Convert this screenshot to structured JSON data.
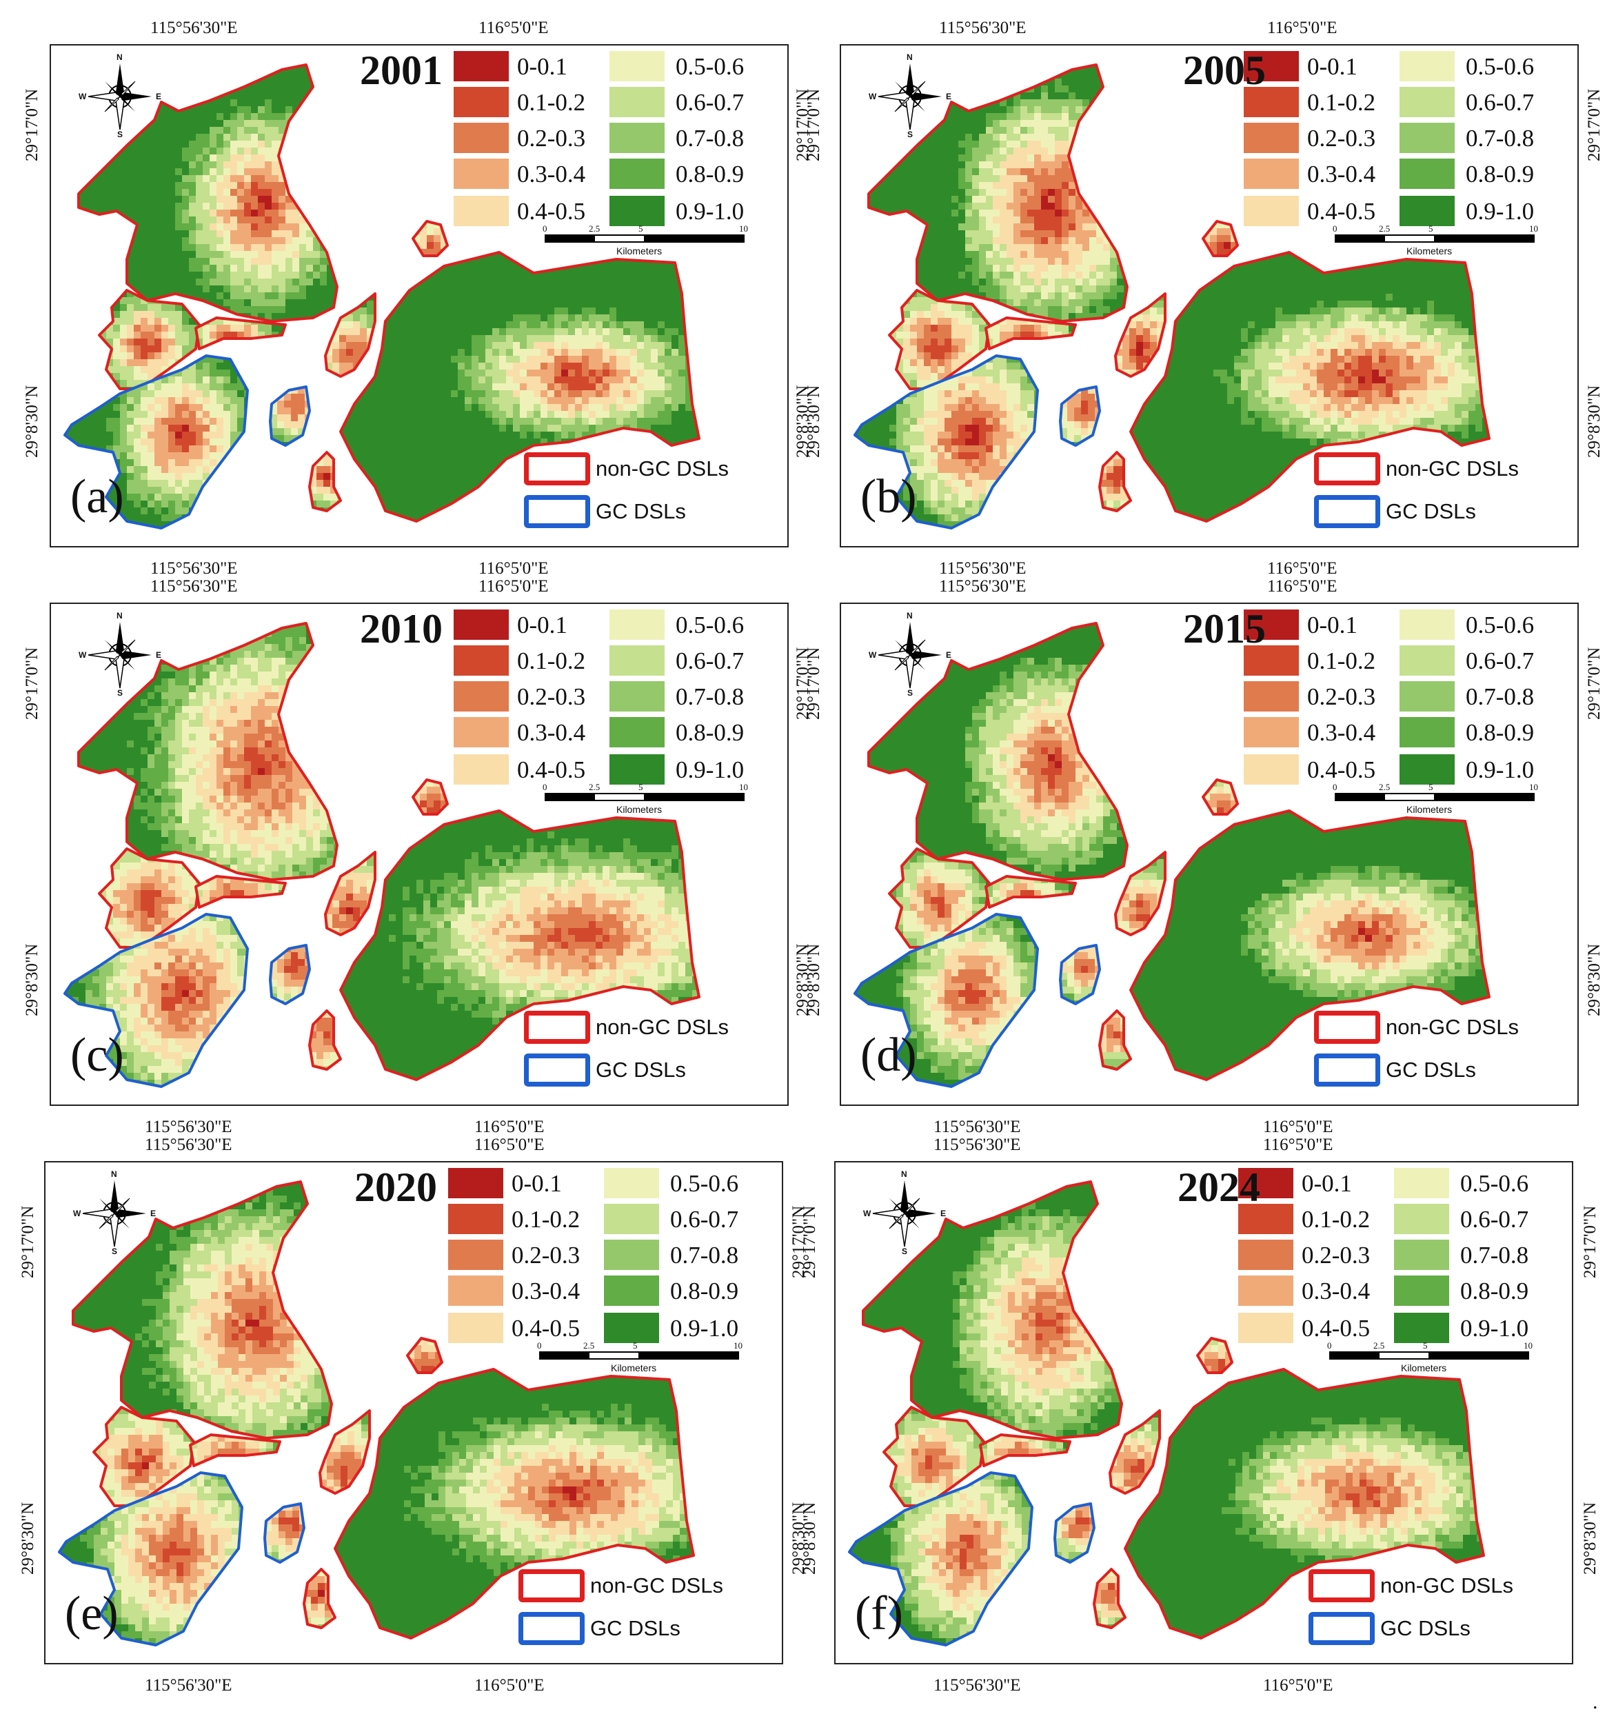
{
  "coordinates": {
    "lon_west": "115°56'30\"E",
    "lon_east": "116°5'0\"E",
    "lat_north": "29°17'0\"N",
    "lat_south": "29°8'30\"N"
  },
  "legend": {
    "classes": [
      {
        "label": "0-0.1",
        "color": "#b51d1d"
      },
      {
        "label": "0.1-0.2",
        "color": "#d2482d"
      },
      {
        "label": "0.2-0.3",
        "color": "#e07b4e"
      },
      {
        "label": "0.3-0.4",
        "color": "#f0aa78"
      },
      {
        "label": "0.4-0.5",
        "color": "#f9deaa"
      },
      {
        "label": "0.5-0.6",
        "color": "#eef2b8"
      },
      {
        "label": "0.6-0.7",
        "color": "#c5e08e"
      },
      {
        "label": "0.7-0.8",
        "color": "#95c86a"
      },
      {
        "label": "0.8-0.9",
        "color": "#62ad45"
      },
      {
        "label": "0.9-1.0",
        "color": "#2f8a2a"
      }
    ],
    "outlines": [
      {
        "label": "non-GC DSLs",
        "color": "#e02020"
      },
      {
        "label": "GC DSLs",
        "color": "#1f5fd0"
      }
    ]
  },
  "scalebar": {
    "ticks": [
      "0",
      "2.5",
      "5",
      "10"
    ],
    "unit": "Kilometers"
  },
  "compass": {
    "n": "N",
    "s": "S",
    "e": "E",
    "w": "W"
  },
  "panels": [
    {
      "letter": "(a)",
      "year": "2001",
      "greenness": 0.85,
      "coreRed": 0.9
    },
    {
      "letter": "(b)",
      "year": "2005",
      "greenness": 0.55,
      "coreRed": 0.95
    },
    {
      "letter": "(c)",
      "year": "2010",
      "greenness": 0.35,
      "coreRed": 0.7
    },
    {
      "letter": "(d)",
      "year": "2015",
      "greenness": 0.75,
      "coreRed": 0.75
    },
    {
      "letter": "(e)",
      "year": "2020",
      "greenness": 0.45,
      "coreRed": 0.7
    },
    {
      "letter": "(f)",
      "year": "2024",
      "greenness": 0.6,
      "coreRed": 0.65
    }
  ],
  "trailing_mark": "."
}
